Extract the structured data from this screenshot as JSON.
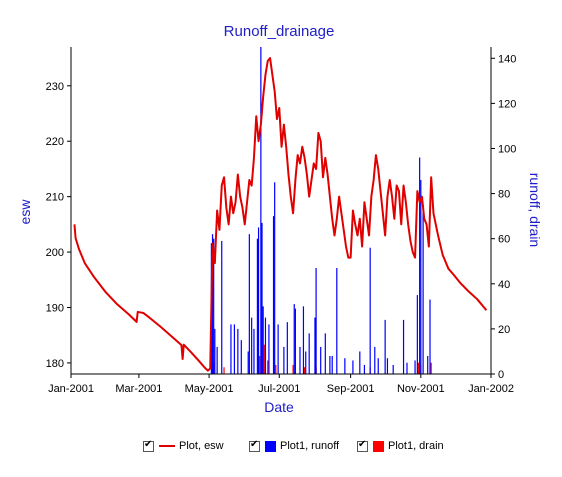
{
  "chart_data": {
    "type": "line",
    "title": "Runoff_drainage",
    "xlabel": "Date",
    "ylabel_left": "esw",
    "ylabel_right": "runoff, drain",
    "xlim": [
      "2001-01-01",
      "2002-01-01"
    ],
    "ylim_left": [
      178,
      237
    ],
    "ylim_right": [
      0,
      145
    ],
    "x_ticks": [
      "Jan-2001",
      "Mar-2001",
      "May-2001",
      "Jul-2001",
      "Sep-2001",
      "Nov-2001",
      "Jan-2002"
    ],
    "x_tick_dates": [
      "2001-01-01",
      "2001-03-01",
      "2001-05-01",
      "2001-07-01",
      "2001-09-01",
      "2001-11-01",
      "2002-01-01"
    ],
    "y_left_ticks": [
      180,
      190,
      200,
      210,
      220,
      230
    ],
    "y_right_ticks": [
      0,
      20,
      40,
      60,
      80,
      100,
      120,
      140
    ],
    "legend_placement": "bottom",
    "series": [
      {
        "name": "Plot, esw",
        "axis": "left",
        "kind": "line",
        "color": "#e00000",
        "points": [
          [
            "2001-01-04",
            205
          ],
          [
            "2001-01-05",
            202.5
          ],
          [
            "2001-01-08",
            200.5
          ],
          [
            "2001-01-13",
            198
          ],
          [
            "2001-01-21",
            195.5
          ],
          [
            "2001-01-31",
            192.8
          ],
          [
            "2001-02-10",
            190.6
          ],
          [
            "2001-02-20",
            188.8
          ],
          [
            "2001-02-27",
            187.4
          ],
          [
            "2001-02-28",
            189.2
          ],
          [
            "2001-03-05",
            189
          ],
          [
            "2001-03-10",
            188.2
          ],
          [
            "2001-03-20",
            186.5
          ],
          [
            "2001-03-31",
            184.5
          ],
          [
            "2001-04-07",
            183.2
          ],
          [
            "2001-04-08",
            180.7
          ],
          [
            "2001-04-09",
            183.3
          ],
          [
            "2001-04-15",
            182
          ],
          [
            "2001-04-22",
            180.4
          ],
          [
            "2001-04-27",
            179.2
          ],
          [
            "2001-04-30",
            178.6
          ],
          [
            "2001-05-02",
            179
          ],
          [
            "2001-05-04",
            201.5
          ],
          [
            "2001-05-06",
            198
          ],
          [
            "2001-05-08",
            207.5
          ],
          [
            "2001-05-10",
            204
          ],
          [
            "2001-05-12",
            212
          ],
          [
            "2001-05-14",
            213.5
          ],
          [
            "2001-05-16",
            208
          ],
          [
            "2001-05-18",
            205
          ],
          [
            "2001-05-20",
            210
          ],
          [
            "2001-05-22",
            207
          ],
          [
            "2001-05-24",
            209
          ],
          [
            "2001-05-26",
            214
          ],
          [
            "2001-05-28",
            210
          ],
          [
            "2001-05-30",
            208
          ],
          [
            "2001-06-01",
            205
          ],
          [
            "2001-06-03",
            209
          ],
          [
            "2001-06-05",
            213
          ],
          [
            "2001-06-07",
            212
          ],
          [
            "2001-06-09",
            217
          ],
          [
            "2001-06-11",
            224.5
          ],
          [
            "2001-06-13",
            220
          ],
          [
            "2001-06-15",
            223
          ],
          [
            "2001-06-17",
            228
          ],
          [
            "2001-06-19",
            232
          ],
          [
            "2001-06-21",
            234.5
          ],
          [
            "2001-06-23",
            235
          ],
          [
            "2001-06-25",
            232
          ],
          [
            "2001-06-27",
            229
          ],
          [
            "2001-06-29",
            224
          ],
          [
            "2001-07-01",
            226
          ],
          [
            "2001-07-03",
            219
          ],
          [
            "2001-07-05",
            223
          ],
          [
            "2001-07-07",
            219
          ],
          [
            "2001-07-09",
            214
          ],
          [
            "2001-07-11",
            210
          ],
          [
            "2001-07-13",
            207
          ],
          [
            "2001-07-15",
            213
          ],
          [
            "2001-07-17",
            217.5
          ],
          [
            "2001-07-19",
            216
          ],
          [
            "2001-07-21",
            219
          ],
          [
            "2001-07-23",
            217
          ],
          [
            "2001-07-25",
            214
          ],
          [
            "2001-07-27",
            210
          ],
          [
            "2001-07-29",
            213
          ],
          [
            "2001-07-31",
            216
          ],
          [
            "2001-08-02",
            215
          ],
          [
            "2001-08-04",
            221.5
          ],
          [
            "2001-08-06",
            220
          ],
          [
            "2001-08-08",
            213.5
          ],
          [
            "2001-08-10",
            217
          ],
          [
            "2001-08-12",
            214
          ],
          [
            "2001-08-14",
            210
          ],
          [
            "2001-08-16",
            206
          ],
          [
            "2001-08-18",
            203
          ],
          [
            "2001-08-20",
            206
          ],
          [
            "2001-08-22",
            210
          ],
          [
            "2001-08-24",
            207
          ],
          [
            "2001-08-26",
            204
          ],
          [
            "2001-08-28",
            201
          ],
          [
            "2001-08-30",
            199
          ],
          [
            "2001-09-01",
            199
          ],
          [
            "2001-09-03",
            207.5
          ],
          [
            "2001-09-05",
            205
          ],
          [
            "2001-09-07",
            203
          ],
          [
            "2001-09-09",
            206
          ],
          [
            "2001-09-11",
            201
          ],
          [
            "2001-09-13",
            209
          ],
          [
            "2001-09-15",
            206
          ],
          [
            "2001-09-17",
            203
          ],
          [
            "2001-09-19",
            210
          ],
          [
            "2001-09-21",
            213
          ],
          [
            "2001-09-23",
            217.5
          ],
          [
            "2001-09-25",
            215
          ],
          [
            "2001-09-27",
            211
          ],
          [
            "2001-09-29",
            207
          ],
          [
            "2001-10-01",
            203
          ],
          [
            "2001-10-03",
            210
          ],
          [
            "2001-10-05",
            213
          ],
          [
            "2001-10-07",
            210
          ],
          [
            "2001-10-09",
            206
          ],
          [
            "2001-10-11",
            212
          ],
          [
            "2001-10-13",
            211
          ],
          [
            "2001-10-15",
            205
          ],
          [
            "2001-10-17",
            212
          ],
          [
            "2001-10-19",
            209
          ],
          [
            "2001-10-21",
            205
          ],
          [
            "2001-10-23",
            202
          ],
          [
            "2001-10-25",
            200
          ],
          [
            "2001-10-27",
            199
          ],
          [
            "2001-10-29",
            211
          ],
          [
            "2001-10-31",
            209
          ],
          [
            "2001-11-02",
            210
          ],
          [
            "2001-11-04",
            206
          ],
          [
            "2001-11-06",
            205
          ],
          [
            "2001-11-08",
            201
          ],
          [
            "2001-11-10",
            213.5
          ],
          [
            "2001-11-12",
            207
          ],
          [
            "2001-11-16",
            203
          ],
          [
            "2001-11-20",
            199.5
          ],
          [
            "2001-11-25",
            197
          ],
          [
            "2001-11-30",
            195.8
          ],
          [
            "2001-12-05",
            194.5
          ],
          [
            "2001-12-12",
            193
          ],
          [
            "2001-12-20",
            191.5
          ],
          [
            "2001-12-28",
            189.5
          ]
        ]
      },
      {
        "name": "Plot1, runoff",
        "axis": "right",
        "kind": "bar",
        "color": "#0000ff",
        "points": [
          [
            "2001-05-03",
            58
          ],
          [
            "2001-05-04",
            62
          ],
          [
            "2001-05-05",
            60
          ],
          [
            "2001-05-06",
            20
          ],
          [
            "2001-05-08",
            12
          ],
          [
            "2001-05-12",
            59
          ],
          [
            "2001-05-20",
            22
          ],
          [
            "2001-05-23",
            22
          ],
          [
            "2001-05-26",
            20
          ],
          [
            "2001-05-29",
            15
          ],
          [
            "2001-06-04",
            10
          ],
          [
            "2001-06-05",
            62
          ],
          [
            "2001-06-07",
            25
          ],
          [
            "2001-06-09",
            20
          ],
          [
            "2001-06-12",
            60
          ],
          [
            "2001-06-13",
            65
          ],
          [
            "2001-06-15",
            145
          ],
          [
            "2001-06-16",
            67
          ],
          [
            "2001-06-17",
            30
          ],
          [
            "2001-06-19",
            25
          ],
          [
            "2001-06-22",
            22
          ],
          [
            "2001-06-26",
            70
          ],
          [
            "2001-06-27",
            85
          ],
          [
            "2001-06-30",
            22
          ],
          [
            "2001-07-05",
            12
          ],
          [
            "2001-07-08",
            23
          ],
          [
            "2001-07-14",
            31
          ],
          [
            "2001-07-15",
            29
          ],
          [
            "2001-07-19",
            12
          ],
          [
            "2001-07-22",
            30
          ],
          [
            "2001-07-24",
            10
          ],
          [
            "2001-07-27",
            18
          ],
          [
            "2001-08-01",
            25
          ],
          [
            "2001-08-02",
            47
          ],
          [
            "2001-08-06",
            12
          ],
          [
            "2001-08-10",
            18
          ],
          [
            "2001-08-14",
            8
          ],
          [
            "2001-08-16",
            8
          ],
          [
            "2001-08-20",
            47
          ],
          [
            "2001-08-27",
            7
          ],
          [
            "2001-09-03",
            6
          ],
          [
            "2001-09-09",
            10
          ],
          [
            "2001-09-13",
            4
          ],
          [
            "2001-09-18",
            56
          ],
          [
            "2001-09-22",
            12
          ],
          [
            "2001-09-25",
            7
          ],
          [
            "2001-10-01",
            24
          ],
          [
            "2001-10-03",
            7
          ],
          [
            "2001-10-08",
            4
          ],
          [
            "2001-10-17",
            24
          ],
          [
            "2001-10-20",
            5
          ],
          [
            "2001-10-27",
            6
          ],
          [
            "2001-10-29",
            35
          ],
          [
            "2001-10-31",
            96
          ],
          [
            "2001-11-01",
            86
          ],
          [
            "2001-11-03",
            75
          ],
          [
            "2001-11-07",
            8
          ],
          [
            "2001-11-09",
            33
          ]
        ]
      },
      {
        "name": "Plot1, drain",
        "axis": "right",
        "kind": "bar",
        "color": "#ff0000",
        "points": [
          [
            "2001-05-05",
            5
          ],
          [
            "2001-05-14",
            3
          ],
          [
            "2001-06-14",
            8
          ],
          [
            "2001-06-16",
            20
          ],
          [
            "2001-06-18",
            13
          ],
          [
            "2001-06-21",
            6
          ],
          [
            "2001-06-28",
            4
          ],
          [
            "2001-07-13",
            4
          ],
          [
            "2001-07-23",
            3
          ],
          [
            "2001-08-02",
            3
          ],
          [
            "2001-09-18",
            3
          ],
          [
            "2001-10-30",
            5
          ],
          [
            "2001-11-01",
            4
          ],
          [
            "2001-11-10",
            5
          ]
        ]
      }
    ]
  },
  "legend": {
    "items": [
      {
        "label": "Plot, esw",
        "kind": "line",
        "color": "#e00000",
        "checked": true
      },
      {
        "label": "Plot1, runoff",
        "kind": "box",
        "color": "#0000ff",
        "checked": true
      },
      {
        "label": "Plot1, drain",
        "kind": "box",
        "color": "#ff0000",
        "checked": true
      }
    ]
  }
}
